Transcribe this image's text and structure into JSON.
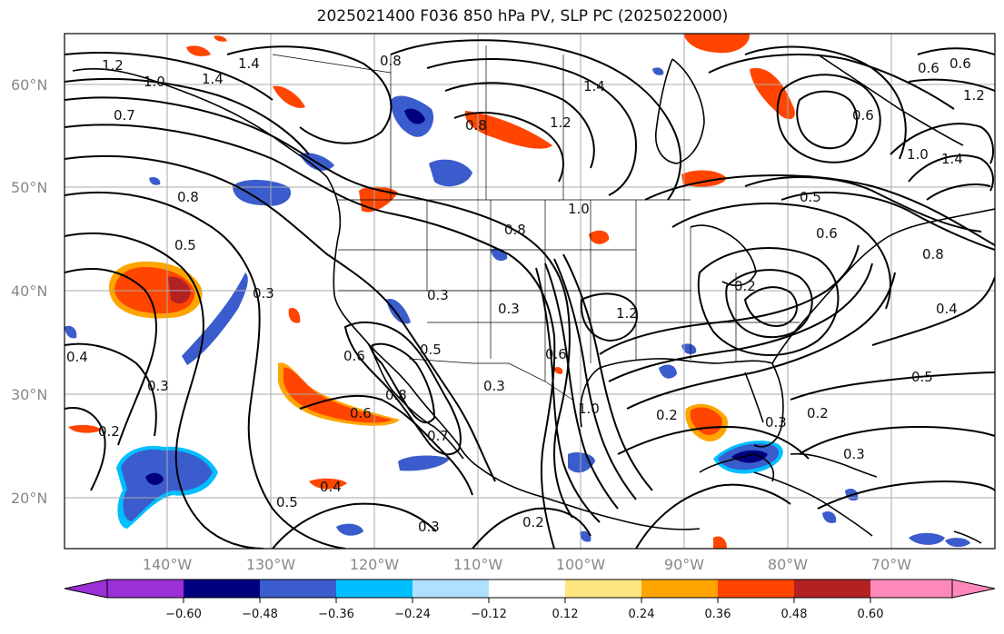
{
  "title": "2025021400 F036 850 hPa PV, SLP PC (2025022000)",
  "latitude_labels": [
    "60°N",
    "50°N",
    "40°N",
    "30°N",
    "20°N"
  ],
  "longitude_labels": [
    "140°W",
    "130°W",
    "120°W",
    "110°W",
    "100°W",
    "90°W",
    "80°W",
    "70°W"
  ],
  "colorbar": {
    "ticks": [
      "−0.60",
      "−0.48",
      "−0.36",
      "−0.24",
      "−0.12",
      "0.12",
      "0.24",
      "0.36",
      "0.48",
      "0.60"
    ],
    "colors": [
      "#9b30d6",
      "#00007f",
      "#3a5ccc",
      "#00bfff",
      "#b0e0ff",
      "#ffffff",
      "#ffe680",
      "#ffa500",
      "#ff4500",
      "#b22222",
      "#ff88bb"
    ]
  },
  "contour_labels": [
    "1.2",
    "1.0",
    "1.4",
    "1.4",
    "0.8",
    "0.7",
    "0.8",
    "0.5",
    "0.3",
    "0.4",
    "0.3",
    "0.2",
    "0.5",
    "0.4",
    "0.3",
    "0.2",
    "0.6",
    "0.6",
    "0.8",
    "0.5",
    "0.7",
    "0.3",
    "0.3",
    "0.8",
    "1.0",
    "0.3",
    "0.6",
    "1.0",
    "1.2",
    "0.2",
    "0.3",
    "0.2",
    "0.3",
    "0.5",
    "0.4",
    "0.5",
    "0.6",
    "0.6",
    "1.0",
    "1.4",
    "1.2",
    "0.8",
    "0.6",
    "1.2",
    "0.8",
    "1.4",
    "0.6",
    "0.2"
  ],
  "map_style": {
    "positive_colors": [
      "#ffe680",
      "#ffa500",
      "#ff4500",
      "#b22222"
    ],
    "negative_colors": [
      "#b0e0ff",
      "#00bfff",
      "#3a5ccc",
      "#00007f"
    ],
    "contour_color": "#000000"
  }
}
